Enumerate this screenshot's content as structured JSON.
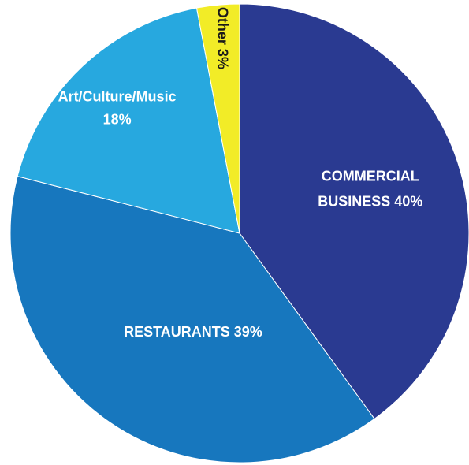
{
  "chart_data": {
    "type": "pie",
    "start": "12 o'clock",
    "direction": "clockwise",
    "slices": [
      {
        "label": "COMMERCIAL BUSINESS",
        "value": 40,
        "label_lines": [
          "COMMERCIAL",
          "BUSINESS 40%"
        ],
        "color": "#2A3A91",
        "text_color": "#FFFFFF"
      },
      {
        "label": "RESTAURANTS",
        "value": 39,
        "label_lines": [
          "RESTAURANTS 39%"
        ],
        "color": "#1777BE",
        "text_color": "#FFFFFF"
      },
      {
        "label": "Art/Culture/Music",
        "value": 18,
        "label_lines": [
          "Art/Culture/Music",
          "18%"
        ],
        "color": "#27A8DF",
        "text_color": "#FFFFFF"
      },
      {
        "label": "Other",
        "value": 3,
        "label_lines": [
          "Other 3%"
        ],
        "color": "#F2EC27",
        "text_color": "#1A1A1A"
      }
    ]
  }
}
